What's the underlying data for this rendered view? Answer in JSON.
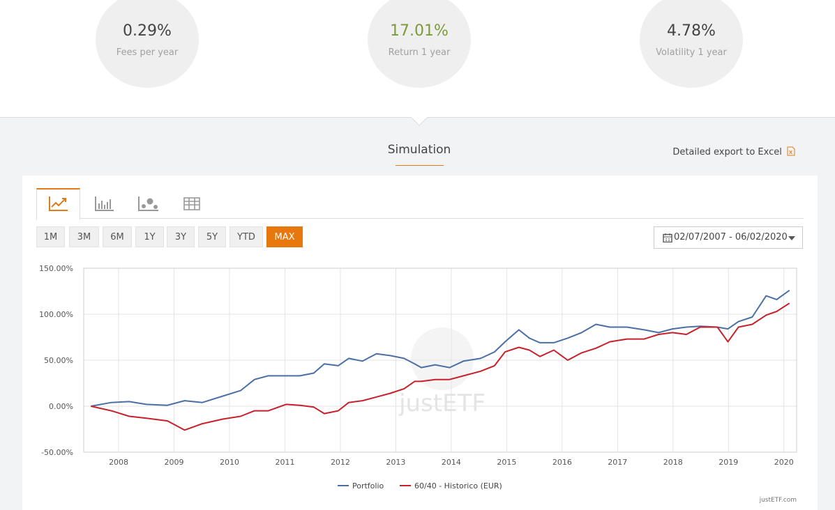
{
  "stats": [
    {
      "value": "0.29%",
      "label": "Fees per year"
    },
    {
      "value": "17.01%",
      "label": "Return 1 year"
    },
    {
      "value": "4.78%",
      "label": "Volatility 1 year"
    }
  ],
  "section_title": "Simulation",
  "export_link": "Detailed export to Excel",
  "periods": [
    "1M",
    "3M",
    "6M",
    "1Y",
    "3Y",
    "5Y",
    "YTD",
    "MAX"
  ],
  "date_range": "02/07/2007 - 06/02/2020",
  "chart_data": {
    "type": "line",
    "x": [
      2007.5,
      2007.87,
      2008.19,
      2008.5,
      2008.88,
      2009.19,
      2009.51,
      2009.88,
      2010.2,
      2010.45,
      2010.7,
      2011.02,
      2011.27,
      2011.52,
      2011.71,
      2011.96,
      2012.15,
      2012.4,
      2012.65,
      2012.9,
      2013.15,
      2013.34,
      2013.46,
      2013.71,
      2013.97,
      2014.22,
      2014.53,
      2014.78,
      2014.97,
      2015.22,
      2015.41,
      2015.6,
      2015.85,
      2016.1,
      2016.35,
      2016.61,
      2016.86,
      2017.17,
      2017.48,
      2017.74,
      2017.99,
      2018.24,
      2018.49,
      2018.8,
      2018.99,
      2019.18,
      2019.43,
      2019.68,
      2019.87,
      2020.1
    ],
    "series": [
      {
        "name": "Portfolio",
        "color": "#4a6fa5",
        "values": [
          0,
          4,
          5,
          2,
          1,
          6,
          4,
          11,
          17,
          29,
          33,
          33,
          33,
          36,
          46,
          44,
          52,
          49,
          57,
          55,
          52,
          46,
          42,
          45,
          42,
          49,
          52,
          59,
          70,
          83,
          74,
          69,
          69,
          74,
          80,
          89,
          86,
          86,
          83,
          80,
          84,
          86,
          87,
          86,
          84,
          92,
          97,
          120,
          116,
          126
        ]
      },
      {
        "name": "60/40 - Historico (EUR)",
        "color": "#c8202a",
        "values": [
          0,
          -5,
          -11,
          -13,
          -16,
          -26,
          -19,
          -14,
          -11,
          -5,
          -5,
          2,
          1,
          -1,
          -8,
          -5,
          4,
          6,
          10,
          14,
          19,
          27,
          27,
          29,
          29,
          33,
          38,
          44,
          59,
          64,
          61,
          54,
          61,
          50,
          58,
          63,
          70,
          73,
          73,
          78,
          80,
          78,
          86,
          86,
          70,
          86,
          89,
          99,
          103,
          112
        ]
      }
    ],
    "xlim": [
      2007.37,
      2020.23
    ],
    "xticks": [
      2008,
      2009,
      2010,
      2011,
      2012,
      2013,
      2014,
      2015,
      2016,
      2017,
      2018,
      2019,
      2020
    ],
    "ylim": [
      -50,
      150
    ],
    "yticks": [
      {
        "value": -50,
        "label": "-50.00%"
      },
      {
        "value": 0,
        "label": "0.00%"
      },
      {
        "value": 50,
        "label": "50.00%"
      },
      {
        "value": 100,
        "label": "100.00%"
      },
      {
        "value": 150,
        "label": "150.00%"
      }
    ],
    "grid": true,
    "watermark": "justETF",
    "credit": "justETF.com"
  }
}
